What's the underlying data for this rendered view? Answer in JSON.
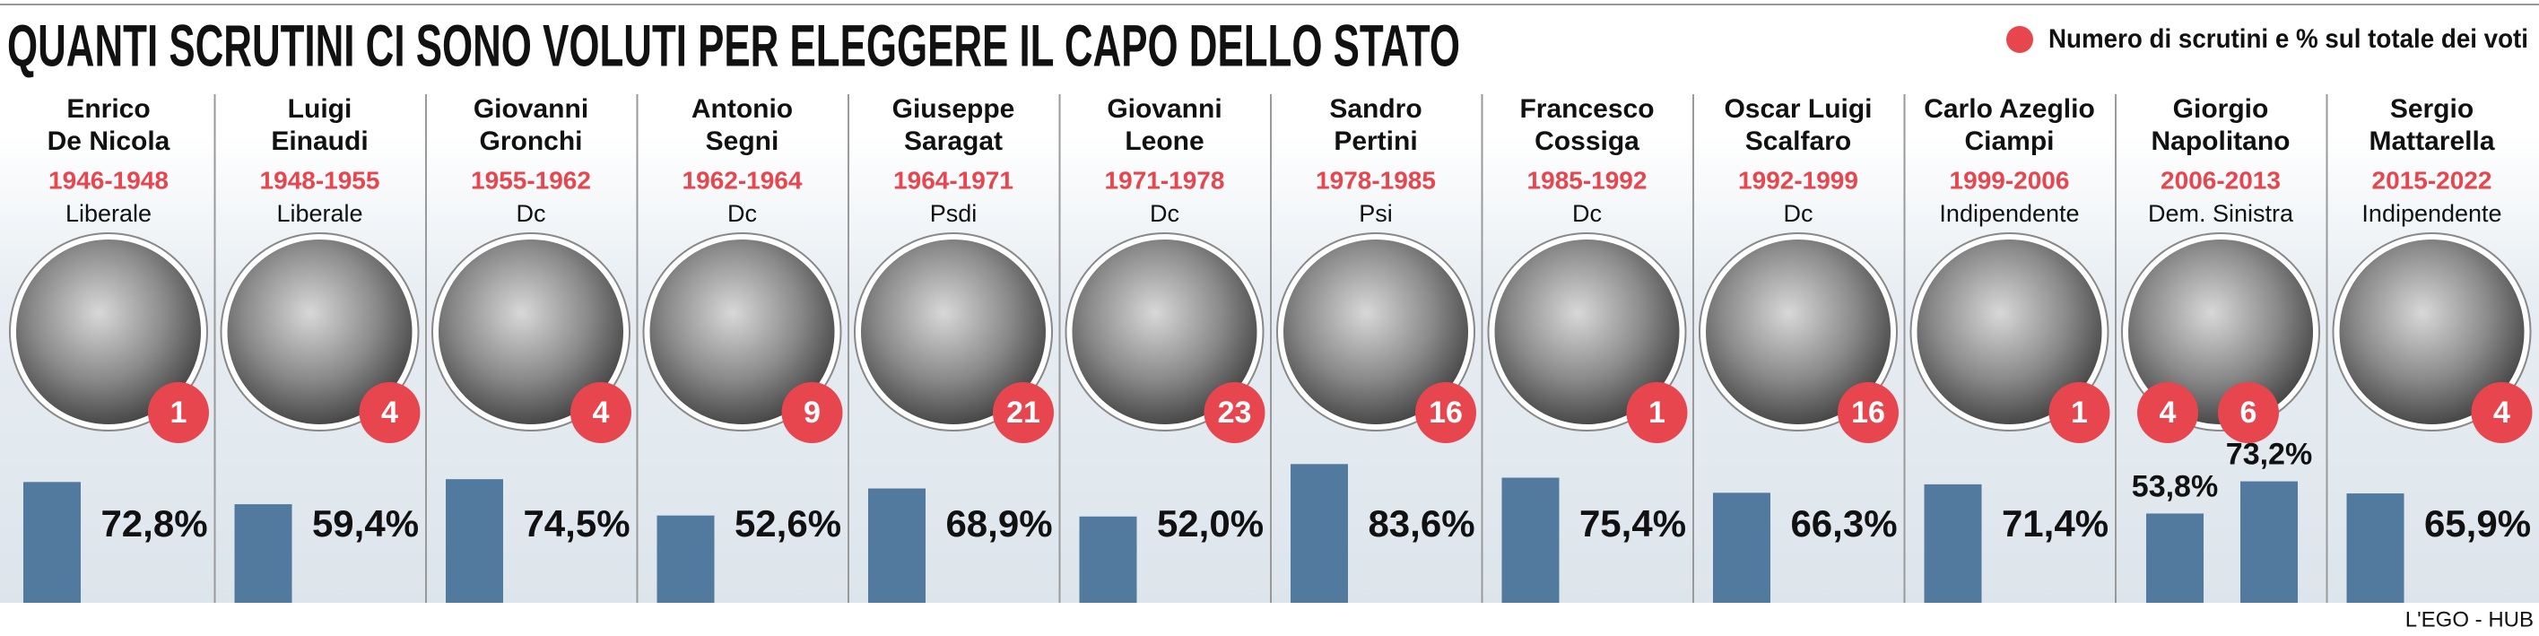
{
  "chart_data": {
    "type": "bar",
    "title": "QUANTI SCRUTINI CI SONO VOLUTI PER ELEGGERE IL CAPO DELLO STATO",
    "legend": "Numero di scrutini e % sul totale dei voti",
    "source": "L'EGO - HUB",
    "color": "#52799e",
    "badge_color": "#e8464e",
    "presidents": [
      {
        "name": [
          "Enrico",
          "De Nicola"
        ],
        "years": "1946-1948",
        "party": "Liberale",
        "ballots": [
          1
        ],
        "values": [
          72.8
        ],
        "value_labels": [
          "72,8%"
        ]
      },
      {
        "name": [
          "Luigi",
          "Einaudi"
        ],
        "years": "1948-1955",
        "party": "Liberale",
        "ballots": [
          4
        ],
        "values": [
          59.4
        ],
        "value_labels": [
          "59,4%"
        ]
      },
      {
        "name": [
          "Giovanni",
          "Gronchi"
        ],
        "years": "1955-1962",
        "party": "Dc",
        "ballots": [
          4
        ],
        "values": [
          74.5
        ],
        "value_labels": [
          "74,5%"
        ]
      },
      {
        "name": [
          "Antonio",
          "Segni"
        ],
        "years": "1962-1964",
        "party": "Dc",
        "ballots": [
          9
        ],
        "values": [
          52.6
        ],
        "value_labels": [
          "52,6%"
        ]
      },
      {
        "name": [
          "Giuseppe",
          "Saragat"
        ],
        "years": "1964-1971",
        "party": "Psdi",
        "ballots": [
          21
        ],
        "values": [
          68.9
        ],
        "value_labels": [
          "68,9%"
        ]
      },
      {
        "name": [
          "Giovanni",
          "Leone"
        ],
        "years": "1971-1978",
        "party": "Dc",
        "ballots": [
          23
        ],
        "values": [
          52.0
        ],
        "value_labels": [
          "52,0%"
        ]
      },
      {
        "name": [
          "Sandro",
          "Pertini"
        ],
        "years": "1978-1985",
        "party": "Psi",
        "ballots": [
          16
        ],
        "values": [
          83.6
        ],
        "value_labels": [
          "83,6%"
        ]
      },
      {
        "name": [
          "Francesco",
          "Cossiga"
        ],
        "years": "1985-1992",
        "party": "Dc",
        "ballots": [
          1
        ],
        "values": [
          75.4
        ],
        "value_labels": [
          "75,4%"
        ]
      },
      {
        "name": [
          "Oscar Luigi",
          "Scalfaro"
        ],
        "years": "1992-1999",
        "party": "Dc",
        "ballots": [
          16
        ],
        "values": [
          66.3
        ],
        "value_labels": [
          "66,3%"
        ]
      },
      {
        "name": [
          "Carlo Azeglio",
          "Ciampi"
        ],
        "years": "1999-2006",
        "party": "Indipendente",
        "ballots": [
          1
        ],
        "values": [
          71.4
        ],
        "value_labels": [
          "71,4%"
        ]
      },
      {
        "name": [
          "Giorgio",
          "Napolitano"
        ],
        "years": "2006-2013",
        "party": "Dem. Sinistra",
        "ballots": [
          4,
          6
        ],
        "values": [
          53.8,
          73.2
        ],
        "value_labels": [
          "53,8%",
          "73,2%"
        ]
      },
      {
        "name": [
          "Sergio",
          "Mattarella"
        ],
        "years": "2015-2022",
        "party": "Indipendente",
        "ballots": [
          4
        ],
        "values": [
          65.9
        ],
        "value_labels": [
          "65,9%"
        ]
      }
    ]
  }
}
